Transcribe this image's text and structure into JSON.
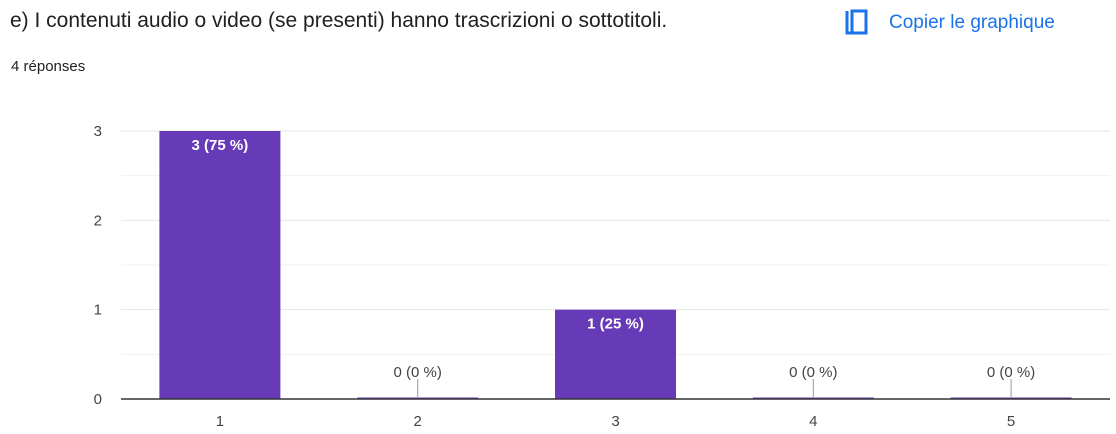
{
  "question": {
    "title": "e) I contenuti audio o video (se presenti) hanno trascrizioni o sottotitoli.",
    "response_count": "4 réponses"
  },
  "copy_button": {
    "label": "Copier le graphique",
    "icon": "copy-icon",
    "color": "#1a73e8"
  },
  "chart_data": {
    "type": "bar",
    "categories": [
      "1",
      "2",
      "3",
      "4",
      "5"
    ],
    "values": [
      3,
      0,
      1,
      0,
      0
    ],
    "data_labels": [
      "3 (75 %)",
      "0 (0 %)",
      "1 (25 %)",
      "0 (0 %)",
      "0 (0 %)"
    ],
    "title": "",
    "xlabel": "",
    "ylabel": "",
    "ylim": [
      0,
      3
    ],
    "y_ticks": [
      0,
      1,
      2,
      3
    ],
    "grid": true,
    "bar_color": "#673ab7"
  }
}
